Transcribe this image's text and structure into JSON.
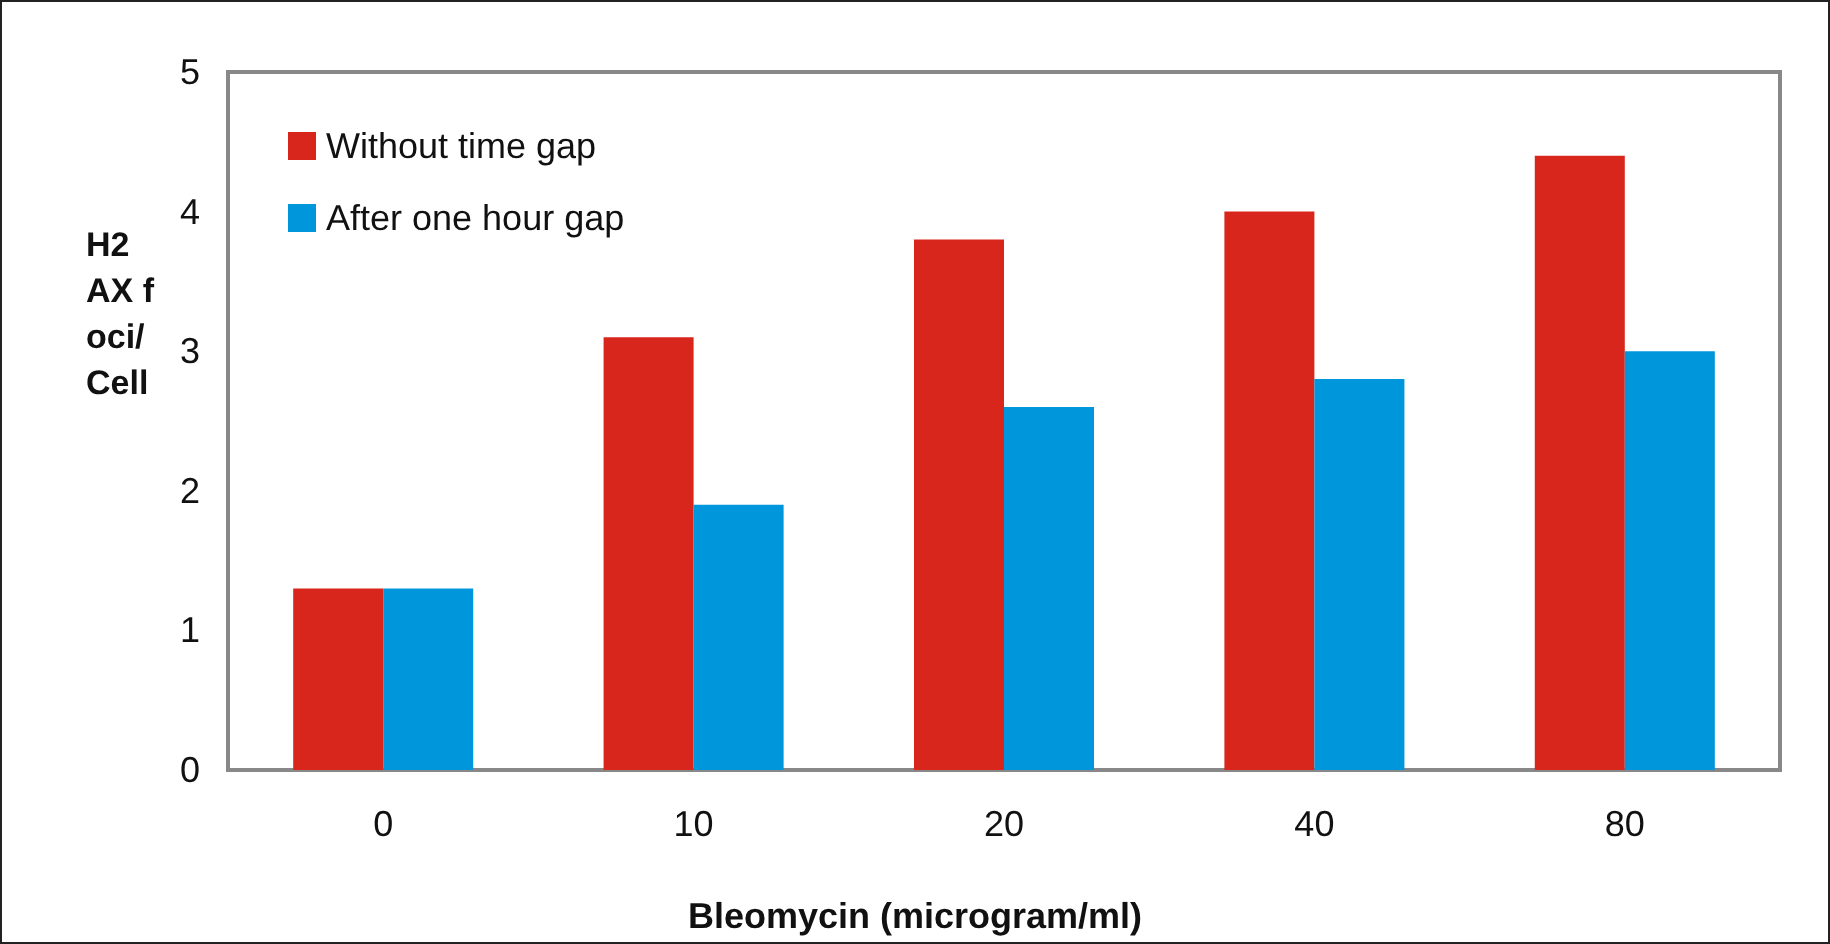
{
  "chart_data": {
    "type": "bar",
    "xlabel": "Bleomycin (microgram/ml)",
    "ylabel": "H2AX foci/Cell",
    "categories": [
      "0",
      "10",
      "20",
      "40",
      "80"
    ],
    "series": [
      {
        "name": "Without time gap",
        "color": "#d9261c",
        "values": [
          1.3,
          3.1,
          3.8,
          4.0,
          4.4
        ]
      },
      {
        "name": "After one hour gap",
        "color": "#0096dc",
        "values": [
          1.3,
          1.9,
          2.6,
          2.8,
          3.0
        ]
      }
    ],
    "ylim": [
      0,
      5
    ],
    "yticks": [
      0,
      1,
      2,
      3,
      4,
      5
    ],
    "grid": false,
    "legend": "top left"
  }
}
